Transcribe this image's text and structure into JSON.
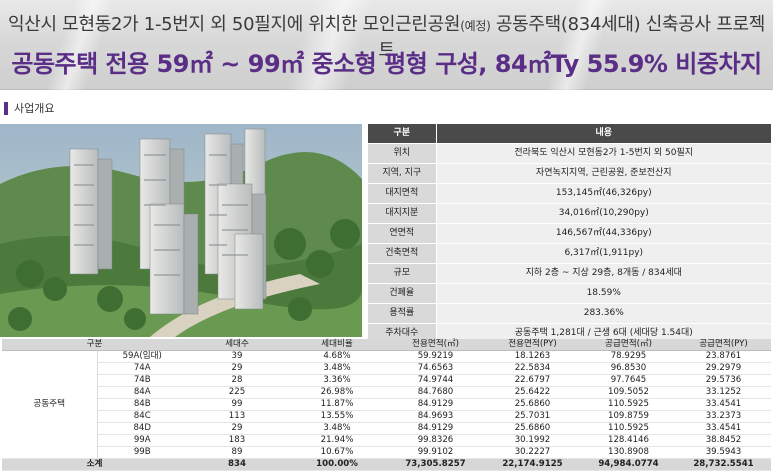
{
  "header": {
    "line1_main": "익산시 모현동2가 1-5번지 외 50필지에 위치한 모인근린공원",
    "line1_small": "(예정)",
    "line1_tail": " 공동주택(834세대) 신축공사 프로젝트",
    "line2": "공동주택 전용 59㎡ ~ 99㎡ 중소형 평형 구성, 84㎡Ty 55.9% 비중차지"
  },
  "section": {
    "label": "사업개요"
  },
  "colors": {
    "accent": "#5a2d86",
    "header_dark": "#4a4a4a"
  },
  "overview": {
    "headers": [
      "구분",
      "내용"
    ],
    "rows": [
      {
        "label": "위치",
        "value": "전라북도 익산시 모현동2가 1-5번지 외 50필지"
      },
      {
        "label": "지역, 지구",
        "value": "자연녹지지역, 근린공원, 준보전산지"
      },
      {
        "label": "대지면적",
        "value": "153,145㎡(46,326py)"
      },
      {
        "label": "대지지분",
        "value": "34,016㎡(10,290py)"
      },
      {
        "label": "연면적",
        "value": "146,567㎡(44,336py)"
      },
      {
        "label": "건축면적",
        "value": "6,317㎡(1,911py)"
      },
      {
        "label": "규모",
        "value": "지하 2층 ~ 지상 29층, 8개동 / 834세대"
      },
      {
        "label": "건폐율",
        "value": "18.59%"
      },
      {
        "label": "용적률",
        "value": "283.36%"
      },
      {
        "label": "주차대수",
        "value": "공동주택 1,281대 / 근생 6대 (세대당 1.54대)"
      }
    ]
  },
  "units": {
    "headers": [
      "구분",
      "",
      "세대수",
      "세대비율",
      "전용면적(㎡)",
      "전용면적(PY)",
      "공급면적(㎡)",
      "공급면적(PY)"
    ],
    "group_label": "공동주택",
    "rows": [
      [
        "59A(임대)",
        "39",
        "4.68%",
        "59.9219",
        "18.1263",
        "78.9295",
        "23.8761"
      ],
      [
        "74A",
        "29",
        "3.48%",
        "74.6563",
        "22.5834",
        "96.8530",
        "29.2979"
      ],
      [
        "74B",
        "28",
        "3.36%",
        "74.9744",
        "22.6797",
        "97.7645",
        "29.5736"
      ],
      [
        "84A",
        "225",
        "26.98%",
        "84.7680",
        "25.6422",
        "109.5052",
        "33.1252"
      ],
      [
        "84B",
        "99",
        "11.87%",
        "84.9129",
        "25.6860",
        "110.5925",
        "33.4541"
      ],
      [
        "84C",
        "113",
        "13.55%",
        "84.9693",
        "25.7031",
        "109.8759",
        "33.2373"
      ],
      [
        "84D",
        "29",
        "3.48%",
        "84.9129",
        "25.6860",
        "110.5925",
        "33.4541"
      ],
      [
        "99A",
        "183",
        "21.94%",
        "99.8326",
        "30.1992",
        "128.4146",
        "38.8452"
      ],
      [
        "99B",
        "89",
        "10.67%",
        "99.9102",
        "30.2227",
        "130.8908",
        "39.5943"
      ]
    ],
    "total": [
      "소계",
      "834",
      "100.00%",
      "73,305.8257",
      "22,174.9125",
      "94,984.0774",
      "28,732.5541"
    ]
  }
}
